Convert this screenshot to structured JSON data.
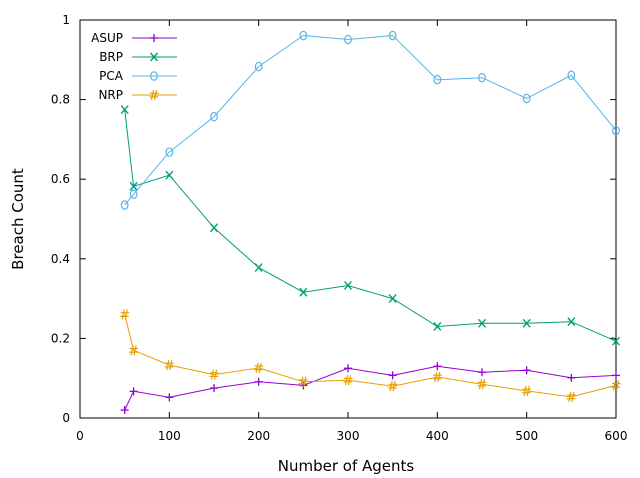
{
  "chart_data": {
    "type": "line",
    "title": "",
    "xlabel": "Number of Agents",
    "ylabel": "Breach Count",
    "xlim": [
      0,
      600
    ],
    "ylim": [
      0,
      1
    ],
    "x_ticks": [
      0,
      100,
      200,
      300,
      400,
      500,
      600
    ],
    "y_ticks": [
      0,
      0.2,
      0.4,
      0.6,
      0.8,
      1
    ],
    "x_tick_labels": [
      "0",
      "100",
      "200",
      "300",
      "400",
      "500",
      "600"
    ],
    "y_tick_labels": [
      "0",
      "0.2",
      "0.4",
      "0.6",
      "0.8",
      "1"
    ],
    "legend_position": "top-left",
    "grid": false,
    "series": [
      {
        "name": "ASUP",
        "color": "#9400d3",
        "marker": "+",
        "x": [
          50,
          60,
          100,
          150,
          200,
          250,
          300,
          350,
          400,
          450,
          500,
          550,
          600
        ],
        "values": [
          0.02,
          0.067,
          0.052,
          0.075,
          0.091,
          0.082,
          0.125,
          0.107,
          0.13,
          0.115,
          0.12,
          0.101,
          0.107
        ]
      },
      {
        "name": "BRP",
        "color": "#009e73",
        "marker": "x",
        "x": [
          50,
          60,
          100,
          150,
          200,
          250,
          300,
          350,
          400,
          450,
          500,
          550,
          600
        ],
        "values": [
          0.775,
          0.582,
          0.61,
          0.478,
          0.378,
          0.316,
          0.333,
          0.3,
          0.23,
          0.238,
          0.238,
          0.242,
          0.193
        ]
      },
      {
        "name": "PCA",
        "color": "#56b4e9",
        "marker": "o",
        "x": [
          50,
          60,
          100,
          150,
          200,
          250,
          300,
          350,
          400,
          450,
          500,
          550,
          600
        ],
        "values": [
          0.535,
          0.562,
          0.668,
          0.757,
          0.883,
          0.961,
          0.951,
          0.961,
          0.85,
          0.855,
          0.803,
          0.861,
          0.722
        ]
      },
      {
        "name": "NRP",
        "color": "#e69f00",
        "marker": "#",
        "x": [
          50,
          60,
          100,
          150,
          200,
          250,
          300,
          350,
          400,
          450,
          500,
          550,
          600
        ],
        "values": [
          0.26,
          0.17,
          0.133,
          0.109,
          0.126,
          0.091,
          0.095,
          0.08,
          0.103,
          0.085,
          0.068,
          0.053,
          0.082
        ]
      }
    ]
  }
}
